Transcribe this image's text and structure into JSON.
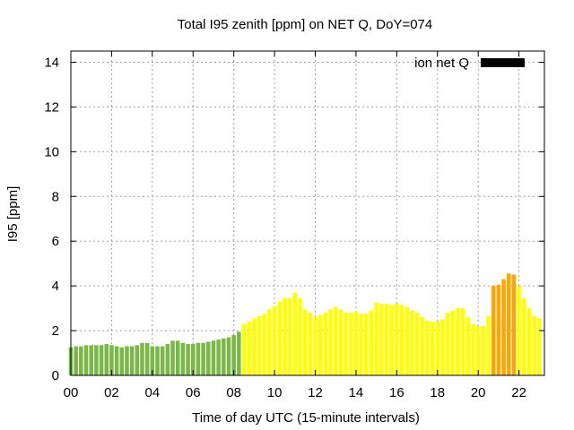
{
  "chart_data": {
    "type": "bar",
    "title": "Total I95 zenith [ppm] on NET Q, DoY=074",
    "xlabel": "Time of day UTC (15-minute intervals)",
    "ylabel": "I95 [ppm]",
    "xlim": [
      0,
      23.25
    ],
    "ylim": [
      0,
      14.5
    ],
    "x_ticks": [
      "00",
      "02",
      "04",
      "06",
      "08",
      "10",
      "12",
      "14",
      "16",
      "18",
      "20",
      "22"
    ],
    "y_ticks": [
      "0",
      "2",
      "4",
      "6",
      "8",
      "10",
      "12",
      "14"
    ],
    "grid": true,
    "legend": {
      "position": "top-right",
      "label": "ion net Q",
      "color": "#000000"
    },
    "interval_hours": 0.25,
    "series": [
      {
        "color": "#7ab648",
        "start_hour": 0,
        "values": [
          1.25,
          1.3,
          1.3,
          1.35,
          1.35,
          1.35,
          1.35,
          1.4,
          1.35,
          1.3,
          1.25,
          1.3,
          1.3,
          1.35,
          1.45,
          1.45,
          1.3,
          1.3,
          1.3,
          1.4,
          1.55,
          1.55,
          1.45,
          1.4,
          1.4,
          1.45,
          1.45,
          1.5,
          1.55,
          1.6,
          1.65,
          1.7,
          1.8,
          1.95
        ]
      },
      {
        "color": "#ffff00",
        "start_hour": 8.5,
        "values": [
          2.3,
          2.4,
          2.55,
          2.65,
          2.75,
          2.95,
          3.1,
          3.3,
          3.45,
          3.45,
          3.7,
          3.45,
          2.95,
          2.8,
          2.6,
          2.7,
          2.8,
          2.95,
          3.05,
          2.95,
          2.8,
          2.8,
          2.85,
          2.75,
          2.75,
          2.9,
          3.25,
          3.2,
          3.2,
          3.15,
          3.2,
          3.15,
          3.05,
          2.9,
          2.8,
          2.6,
          2.45,
          2.4,
          2.4,
          2.5,
          2.8,
          2.9,
          3.0,
          3.0,
          2.6,
          2.3,
          2.2,
          2.2,
          2.65
        ]
      },
      {
        "color": "#ffa500",
        "start_hour": 20.75,
        "values": [
          4.0,
          4.05,
          4.3,
          4.55,
          4.5
        ]
      },
      {
        "color": "#ffff00",
        "start_hour": 22.0,
        "values": [
          4.0,
          3.45,
          3.0,
          2.65,
          2.55
        ]
      }
    ]
  }
}
